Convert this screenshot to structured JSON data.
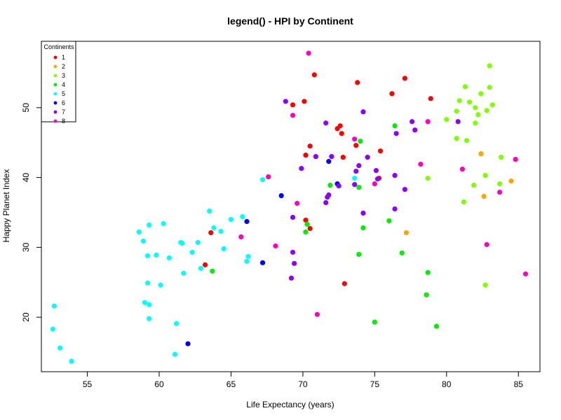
{
  "chart_data": {
    "type": "scatter",
    "title": "legend() - HPI by Continent",
    "xlabel": "Life Expectancy (years)",
    "ylabel": "Happy Planet Index",
    "xlim": [
      51.8,
      86.5
    ],
    "ylim": [
      12.2,
      59.5
    ],
    "x_ticks": [
      55,
      60,
      65,
      70,
      75,
      80,
      85
    ],
    "y_ticks": [
      20,
      30,
      40,
      50
    ],
    "grid": false,
    "legend": {
      "title": "Continents",
      "position": "top-left",
      "entries": [
        "1",
        "2",
        "3",
        "4",
        "5",
        "6",
        "7",
        "8"
      ]
    },
    "colors": {
      "1": "#ff0000",
      "2": "#ffa500",
      "3": "#7fff00",
      "4": "#00ee00",
      "5": "#00ffff",
      "6": "#0000ff",
      "7": "#8b00ff",
      "8": "#ff00bf"
    },
    "series": [
      {
        "name": "1",
        "points": [
          [
            69.3,
            50.4
          ],
          [
            70.1,
            50.9
          ],
          [
            70.8,
            54.7
          ],
          [
            73.8,
            53.6
          ],
          [
            77.1,
            54.2
          ],
          [
            76.2,
            52
          ],
          [
            78.9,
            51.3
          ],
          [
            70.5,
            44.5
          ],
          [
            70.2,
            43.2
          ],
          [
            72.4,
            47
          ],
          [
            72.6,
            47.4
          ],
          [
            72.7,
            46.3
          ],
          [
            73.7,
            44.6
          ],
          [
            75.4,
            43.8
          ],
          [
            72.8,
            42.9
          ],
          [
            75.3,
            39.9
          ],
          [
            70.2,
            33.9
          ],
          [
            70.5,
            32.7
          ],
          [
            63.6,
            32.1
          ],
          [
            63.2,
            27.5
          ],
          [
            72.9,
            24.8
          ]
        ]
      },
      {
        "name": "2",
        "points": [
          [
            82.4,
            43.4
          ],
          [
            84.5,
            39.5
          ],
          [
            82.6,
            37.3
          ],
          [
            77.2,
            32.1
          ]
        ]
      },
      {
        "name": "3",
        "points": [
          [
            83,
            56
          ],
          [
            81.3,
            53
          ],
          [
            83,
            52.9
          ],
          [
            82.4,
            52
          ],
          [
            80.9,
            51
          ],
          [
            81.6,
            50.8
          ],
          [
            83.2,
            50.4
          ],
          [
            80.7,
            49.5
          ],
          [
            82,
            50
          ],
          [
            82.2,
            49
          ],
          [
            82.8,
            49.6
          ],
          [
            80,
            48.3
          ],
          [
            82,
            47.8
          ],
          [
            80.7,
            45.6
          ],
          [
            81.4,
            45.3
          ],
          [
            78.7,
            39.9
          ],
          [
            82.7,
            40.3
          ],
          [
            81.9,
            38.9
          ],
          [
            81.2,
            36.5
          ],
          [
            83.8,
            42.9
          ],
          [
            83.7,
            39.1
          ],
          [
            82.7,
            24.6
          ]
        ]
      },
      {
        "name": "4",
        "points": [
          [
            76.4,
            47.4
          ],
          [
            74,
            45.2
          ],
          [
            71.9,
            38.9
          ],
          [
            73.9,
            38.6
          ],
          [
            70.3,
            33.3
          ],
          [
            70.2,
            32.2
          ],
          [
            74.2,
            32.8
          ],
          [
            76,
            33.8
          ],
          [
            63.7,
            26.6
          ],
          [
            73.9,
            29
          ],
          [
            76.9,
            29.2
          ],
          [
            78.7,
            26.4
          ],
          [
            78.6,
            23.2
          ],
          [
            75,
            19.3
          ],
          [
            79.3,
            18.7
          ]
        ]
      },
      {
        "name": "5",
        "points": [
          [
            52.6,
            18.3
          ],
          [
            52.7,
            21.6
          ],
          [
            53.1,
            15.6
          ],
          [
            53.9,
            13.7
          ],
          [
            58.6,
            32.2
          ],
          [
            58.9,
            30.9
          ],
          [
            59.3,
            33.2
          ],
          [
            59.2,
            28.8
          ],
          [
            59.8,
            28.9
          ],
          [
            60.3,
            33.4
          ],
          [
            60.7,
            28.5
          ],
          [
            61.5,
            30.7
          ],
          [
            61.6,
            30.6
          ],
          [
            62.3,
            29.3
          ],
          [
            62.7,
            30.7
          ],
          [
            62.9,
            27
          ],
          [
            63.5,
            35.2
          ],
          [
            63.8,
            32.8
          ],
          [
            64.3,
            32.3
          ],
          [
            64.5,
            29.8
          ],
          [
            65,
            34
          ],
          [
            65.8,
            34.4
          ],
          [
            66.1,
            28
          ],
          [
            66.2,
            28.7
          ],
          [
            67.2,
            39.7
          ],
          [
            59,
            22.1
          ],
          [
            59.3,
            21.8
          ],
          [
            59.2,
            24.9
          ],
          [
            60.1,
            24.6
          ],
          [
            61.7,
            26.3
          ],
          [
            59.3,
            19.8
          ],
          [
            61.2,
            19.1
          ],
          [
            61.1,
            14.7
          ],
          [
            73.6,
            39.9
          ]
        ]
      },
      {
        "name": "6",
        "points": [
          [
            71.8,
            42.3
          ],
          [
            72.4,
            39.1
          ],
          [
            68.5,
            37.4
          ],
          [
            66.1,
            33.7
          ],
          [
            67.2,
            27.8
          ],
          [
            62,
            16.2
          ]
        ]
      },
      {
        "name": "7",
        "points": [
          [
            68.8,
            50.9
          ],
          [
            74.2,
            49.4
          ],
          [
            71.6,
            47.8
          ],
          [
            77.6,
            48
          ],
          [
            76.5,
            46.3
          ],
          [
            77.8,
            46.8
          ],
          [
            80.8,
            48
          ],
          [
            70.9,
            43
          ],
          [
            72,
            43
          ],
          [
            74.5,
            42.9
          ],
          [
            73.9,
            41.7
          ],
          [
            75.1,
            41
          ],
          [
            73.7,
            40.9
          ],
          [
            69.9,
            41.3
          ],
          [
            76.4,
            40.3
          ],
          [
            75.2,
            39.8
          ],
          [
            73.6,
            39
          ],
          [
            72.5,
            38.8
          ],
          [
            77.1,
            38.3
          ],
          [
            71.8,
            37.5
          ],
          [
            71.7,
            37.2
          ],
          [
            71.6,
            36.4
          ],
          [
            76.4,
            35.5
          ],
          [
            74.2,
            34.9
          ],
          [
            69.3,
            34.3
          ],
          [
            69.3,
            29.3
          ],
          [
            69.4,
            27.7
          ],
          [
            69.2,
            25.6
          ]
        ]
      },
      {
        "name": "8",
        "points": [
          [
            70.4,
            57.8
          ],
          [
            69.3,
            48.9
          ],
          [
            73.6,
            45.5
          ],
          [
            67.6,
            40.1
          ],
          [
            78.2,
            41.9
          ],
          [
            81.1,
            41.2
          ],
          [
            84.8,
            42.6
          ],
          [
            75,
            39.1
          ],
          [
            69.6,
            36.3
          ],
          [
            65.7,
            31.5
          ],
          [
            68.1,
            30.2
          ],
          [
            82.8,
            30.4
          ],
          [
            83.7,
            37.9
          ],
          [
            78.7,
            48
          ],
          [
            85.5,
            26.2
          ],
          [
            71,
            20.4
          ]
        ]
      }
    ]
  }
}
